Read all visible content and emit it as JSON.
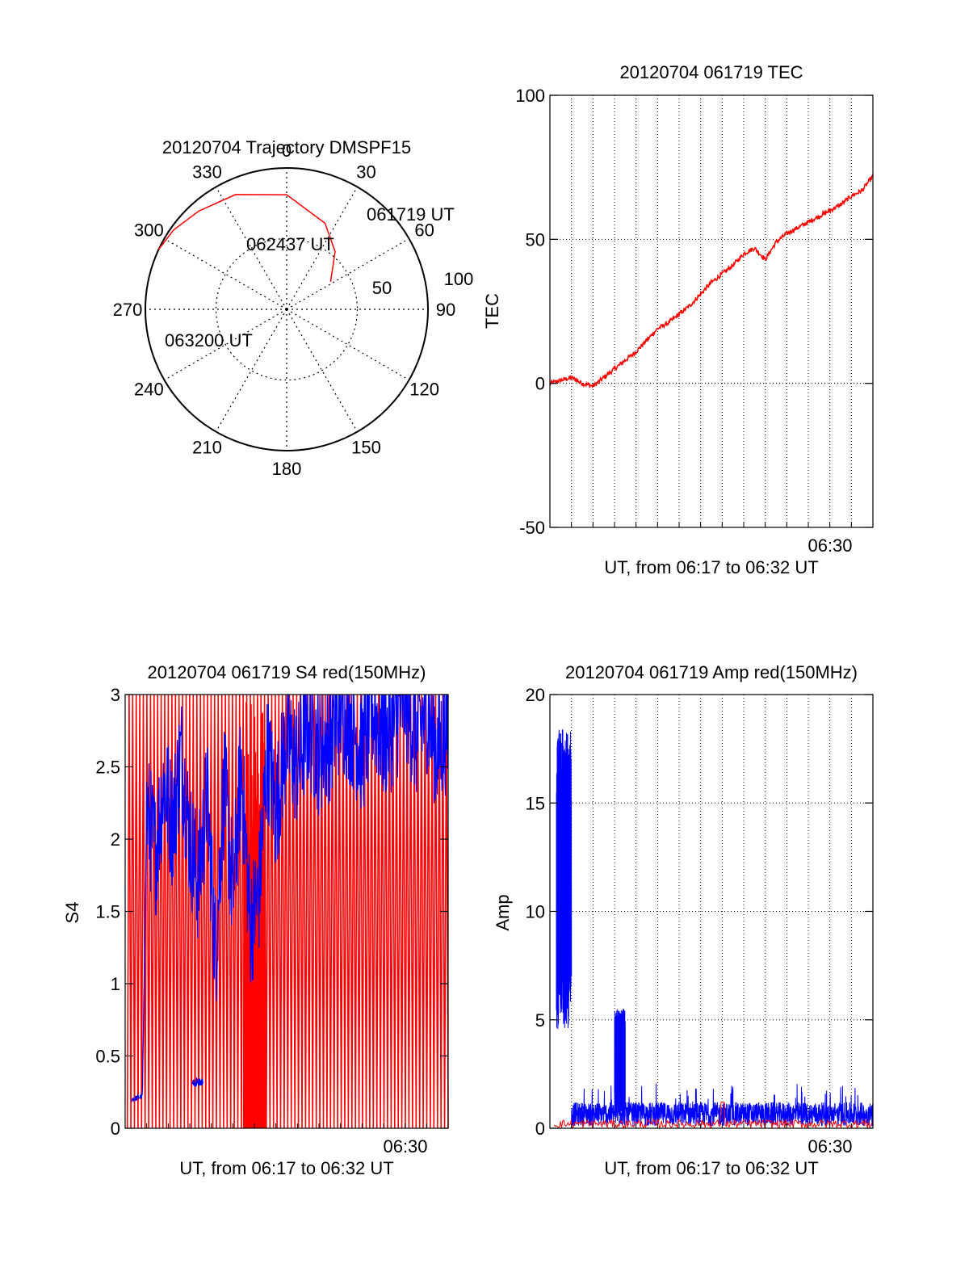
{
  "chart_data": [
    {
      "type": "polar",
      "title": "20120704 Trajectory DMSPF15",
      "azimuth_labels": [
        "0",
        "30",
        "60",
        "90",
        "120",
        "150",
        "180",
        "210",
        "240",
        "270",
        "300",
        "330"
      ],
      "radial_labels": [
        "50",
        "100"
      ],
      "trajectory": [
        {
          "azimuth": 58,
          "elevation": 57
        },
        {
          "azimuth": 40,
          "elevation": 42
        },
        {
          "azimuth": 24,
          "elevation": 30
        },
        {
          "azimuth": 0,
          "elevation": 17
        },
        {
          "azimuth": -24,
          "elevation": 10
        },
        {
          "azimuth": -42,
          "elevation": 6
        },
        {
          "azimuth": -55,
          "elevation": 2
        },
        {
          "azimuth": -65,
          "elevation": 0
        }
      ],
      "annotations": [
        "061719 UT",
        "062437 UT",
        "063200 UT"
      ],
      "line_color": "#ff0000"
    },
    {
      "type": "line",
      "title": "20120704 061719 TEC",
      "xlabel": "UT, from 06:17 to 06:32 UT",
      "ylabel": "TEC",
      "xlim": [
        0,
        15
      ],
      "ylim": [
        -50,
        100
      ],
      "yticks": [
        "-50",
        "0",
        "50",
        "100"
      ],
      "xtick_label": "06:30",
      "xtick_position": 13,
      "series": [
        {
          "color": "#ff0000",
          "x": [
            0,
            0.5,
            1,
            1.5,
            2,
            2.5,
            3,
            3.5,
            4,
            4.5,
            5,
            5.5,
            6,
            6.5,
            7,
            7.5,
            8,
            8.5,
            9,
            9.5,
            10,
            10.5,
            11,
            11.5,
            12,
            12.5,
            13,
            13.5,
            14,
            14.5,
            15
          ],
          "y": [
            0,
            1,
            2,
            0,
            -1,
            2,
            5,
            8,
            11,
            15,
            19,
            21,
            24,
            27,
            31,
            35,
            38,
            41,
            45,
            47,
            43,
            49,
            52,
            54,
            56,
            58,
            60,
            62,
            65,
            67,
            72
          ]
        }
      ]
    },
    {
      "type": "line",
      "title": "20120704 061719 S4 red(150MHz)",
      "xlabel": "UT, from 06:17 to 06:32 UT",
      "ylabel": "S4",
      "xlim": [
        0,
        15
      ],
      "ylim": [
        0,
        3
      ],
      "yticks": [
        "0",
        "0.5",
        "1",
        "1.5",
        "2",
        "2.5",
        "3"
      ],
      "xtick_label": "06:30",
      "xtick_position": 13,
      "series": [
        {
          "color": "#ff0000",
          "style": "dense-oscillation",
          "low": 0,
          "high": 3
        },
        {
          "color": "#0000ff",
          "x": [
            0.3,
            0.8,
            1,
            1.4,
            1.8,
            2.2,
            2.6,
            3,
            3.4,
            3.8,
            4.2,
            4.6,
            5,
            5.4,
            5.8,
            6.2,
            6.6,
            7,
            7.5,
            8,
            8.5,
            9,
            9.5,
            10,
            10.5,
            11,
            11.5,
            12,
            12.5,
            13,
            13.5,
            14,
            14.5,
            15
          ],
          "y": [
            0.2,
            0.22,
            2.2,
            1.9,
            2.4,
            2.1,
            2.6,
            2.0,
            1.7,
            2.3,
            1.2,
            2.4,
            1.6,
            2.5,
            1.4,
            1.6,
            2.6,
            2.2,
            2.7,
            2.5,
            2.8,
            2.6,
            2.7,
            2.9,
            2.8,
            2.6,
            2.9,
            2.7,
            2.8,
            3.0,
            2.7,
            2.9,
            2.6,
            2.8
          ]
        }
      ]
    },
    {
      "type": "line",
      "title": "20120704 061719 Amp red(150MHz)",
      "xlabel": "UT, from 06:17 to 06:32 UT",
      "ylabel": "Amp",
      "xlim": [
        0,
        15
      ],
      "ylim": [
        0,
        20
      ],
      "yticks": [
        "0",
        "5",
        "10",
        "15",
        "20"
      ],
      "xtick_label": "06:30",
      "xtick_position": 13,
      "series": [
        {
          "color": "#0000ff",
          "bursts": [
            {
              "x0": 0.3,
              "x1": 1.0,
              "low": 4.5,
              "high": 18.5
            },
            {
              "x0": 3.0,
              "x1": 3.5,
              "low": 0.5,
              "high": 5.5
            }
          ],
          "baseline_low": 0.1,
          "baseline_high": 1.2
        },
        {
          "color": "#ff0000",
          "baseline_low": 0,
          "baseline_high": 0.4
        }
      ]
    }
  ]
}
